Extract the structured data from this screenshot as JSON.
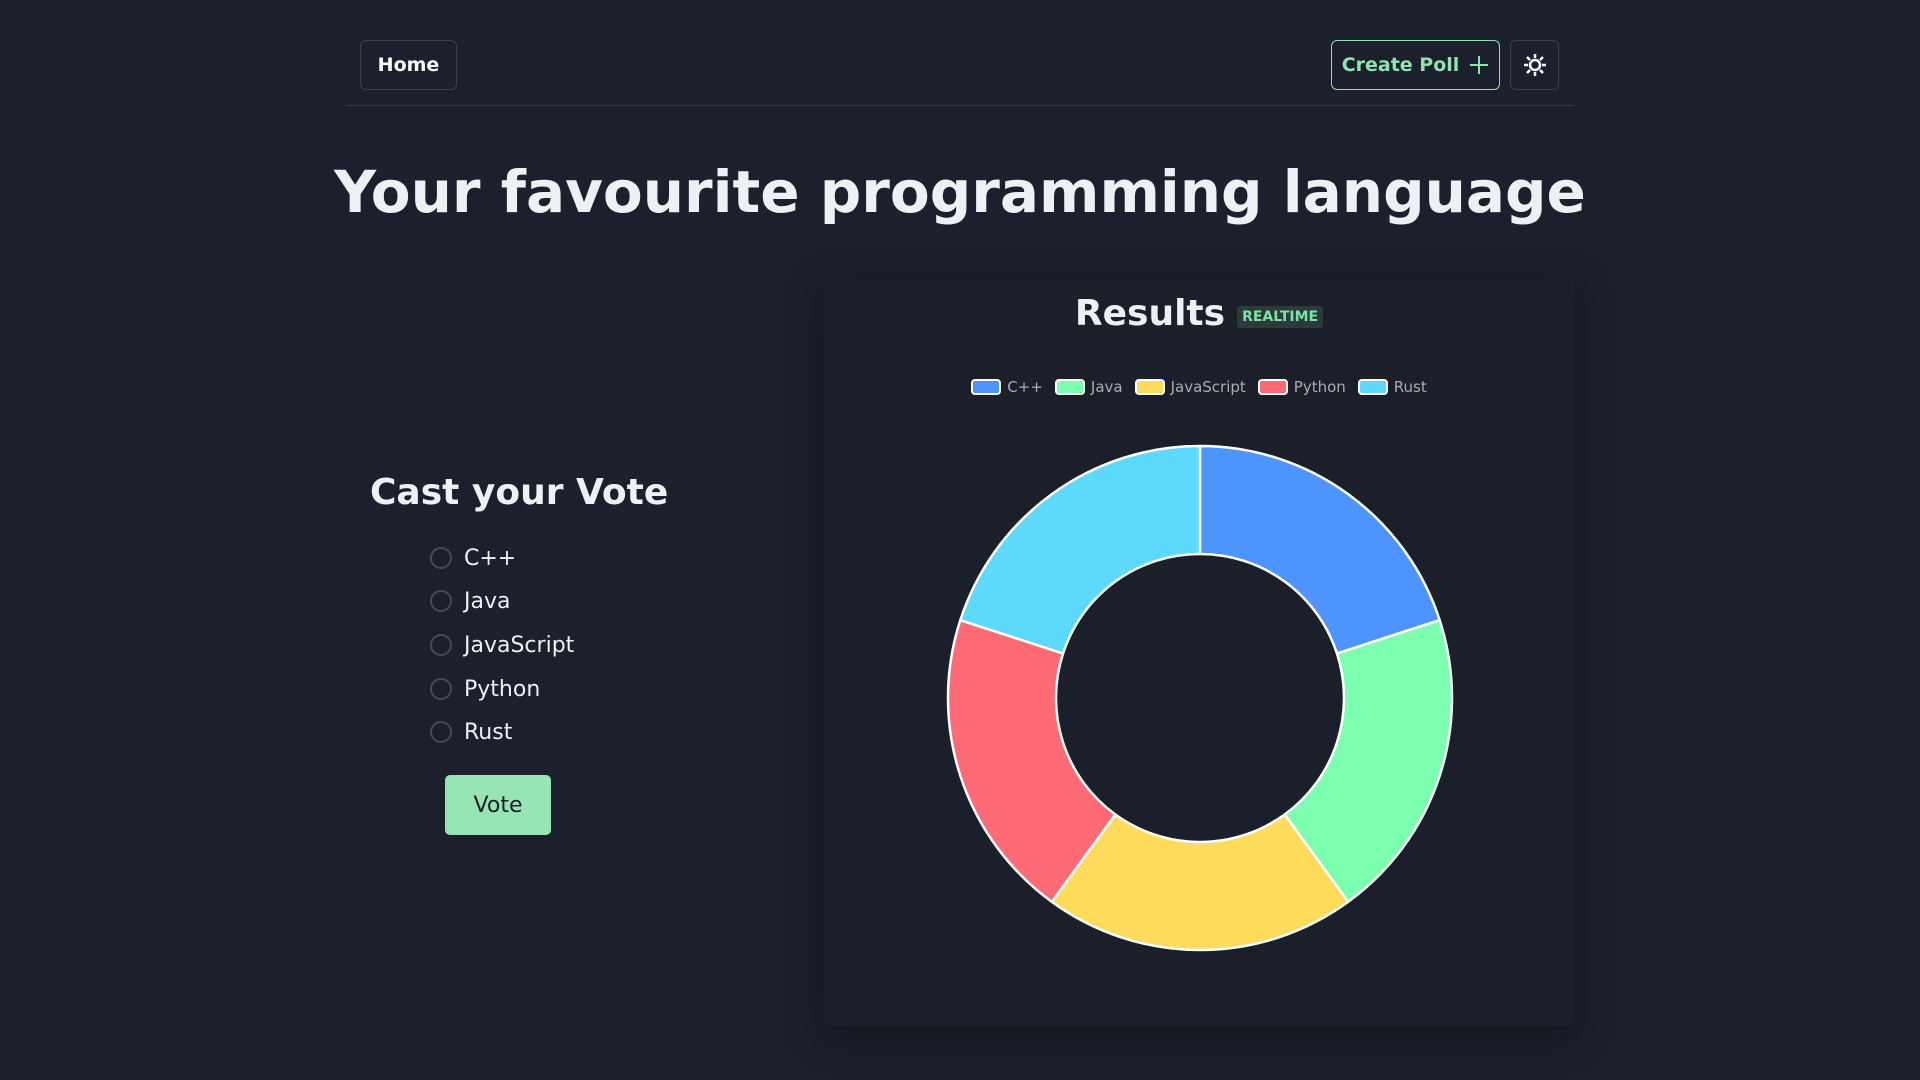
{
  "nav": {
    "home_label": "Home",
    "create_poll_label": "Create Poll",
    "theme_icon": "sun-icon"
  },
  "poll": {
    "title": "Your favourite programming language"
  },
  "vote": {
    "heading": "Cast your Vote",
    "options": [
      "C++",
      "Java",
      "JavaScript",
      "Python",
      "Rust"
    ],
    "button_label": "Vote"
  },
  "results": {
    "heading": "Results",
    "badge": "REALTIME"
  },
  "chart_data": {
    "type": "pie",
    "variant": "doughnut",
    "categories": [
      "C++",
      "Java",
      "JavaScript",
      "Python",
      "Rust"
    ],
    "values": [
      1,
      1,
      1,
      1,
      1
    ],
    "colors": [
      "#4d94ff",
      "#7dffb0",
      "#ffdb5c",
      "#ff6b74",
      "#5cd9fb"
    ],
    "legend": "top"
  }
}
